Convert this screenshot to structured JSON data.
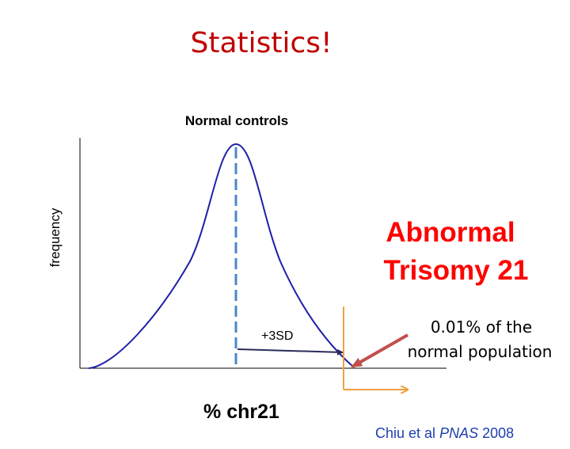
{
  "slide": {
    "title": "Statistics!",
    "citation": {
      "authors": "Chiu et al",
      "journal": "PNAS",
      "year": "2008"
    }
  },
  "diagram": {
    "curve_label": "Normal controls",
    "x_axis_label": "% chr21",
    "y_axis_label": "frequency",
    "sd_label": "+3SD",
    "abnormal_label_line1": "Abnormal",
    "abnormal_label_line2": "Trisomy 21",
    "percent_label_line1": "0.01% of the",
    "percent_label_line2": "normal population",
    "colors": {
      "title": "#c00000",
      "curve": "#1f1fa8",
      "mean_line": "#4a86c8",
      "sd_arrow": "#2b2b5a",
      "cutoff": "#f0a040",
      "callout_arrow": "#c0504d",
      "abnormal_text": "#ff0000",
      "citation": "#1f3fb0"
    },
    "icons": [
      "sd-arrow-icon",
      "cutoff-bracket-icon",
      "callout-arrow-icon"
    ]
  }
}
